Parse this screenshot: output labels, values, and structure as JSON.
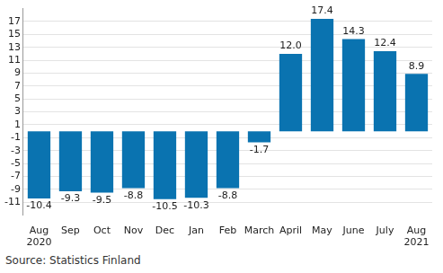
{
  "chart_data": {
    "type": "bar",
    "categories": [
      "Aug 2020",
      "Sep",
      "Oct",
      "Nov",
      "Dec",
      "Jan",
      "Feb",
      "March",
      "April",
      "May",
      "June",
      "July",
      "Aug 2021"
    ],
    "values": [
      -10.4,
      -9.3,
      -9.5,
      -8.8,
      -10.5,
      -10.3,
      -8.8,
      -1.7,
      12.0,
      17.4,
      14.3,
      12.4,
      8.9
    ],
    "value_labels": [
      "-10.4",
      "-9.3",
      "-9.5",
      "-8.8",
      "-10.5",
      "-10.3",
      "-8.8",
      "-1.7",
      "12.0",
      "17.4",
      "14.3",
      "12.4",
      "8.9"
    ],
    "color": "#0a73b0",
    "ylim": [
      -13,
      19
    ],
    "yticks": [
      -11,
      -9,
      -7,
      -5,
      -3,
      -1,
      1,
      3,
      5,
      7,
      9,
      11,
      13,
      15,
      17
    ],
    "grid": true,
    "data_labels": true,
    "source": "Source: Statistics Finland"
  }
}
